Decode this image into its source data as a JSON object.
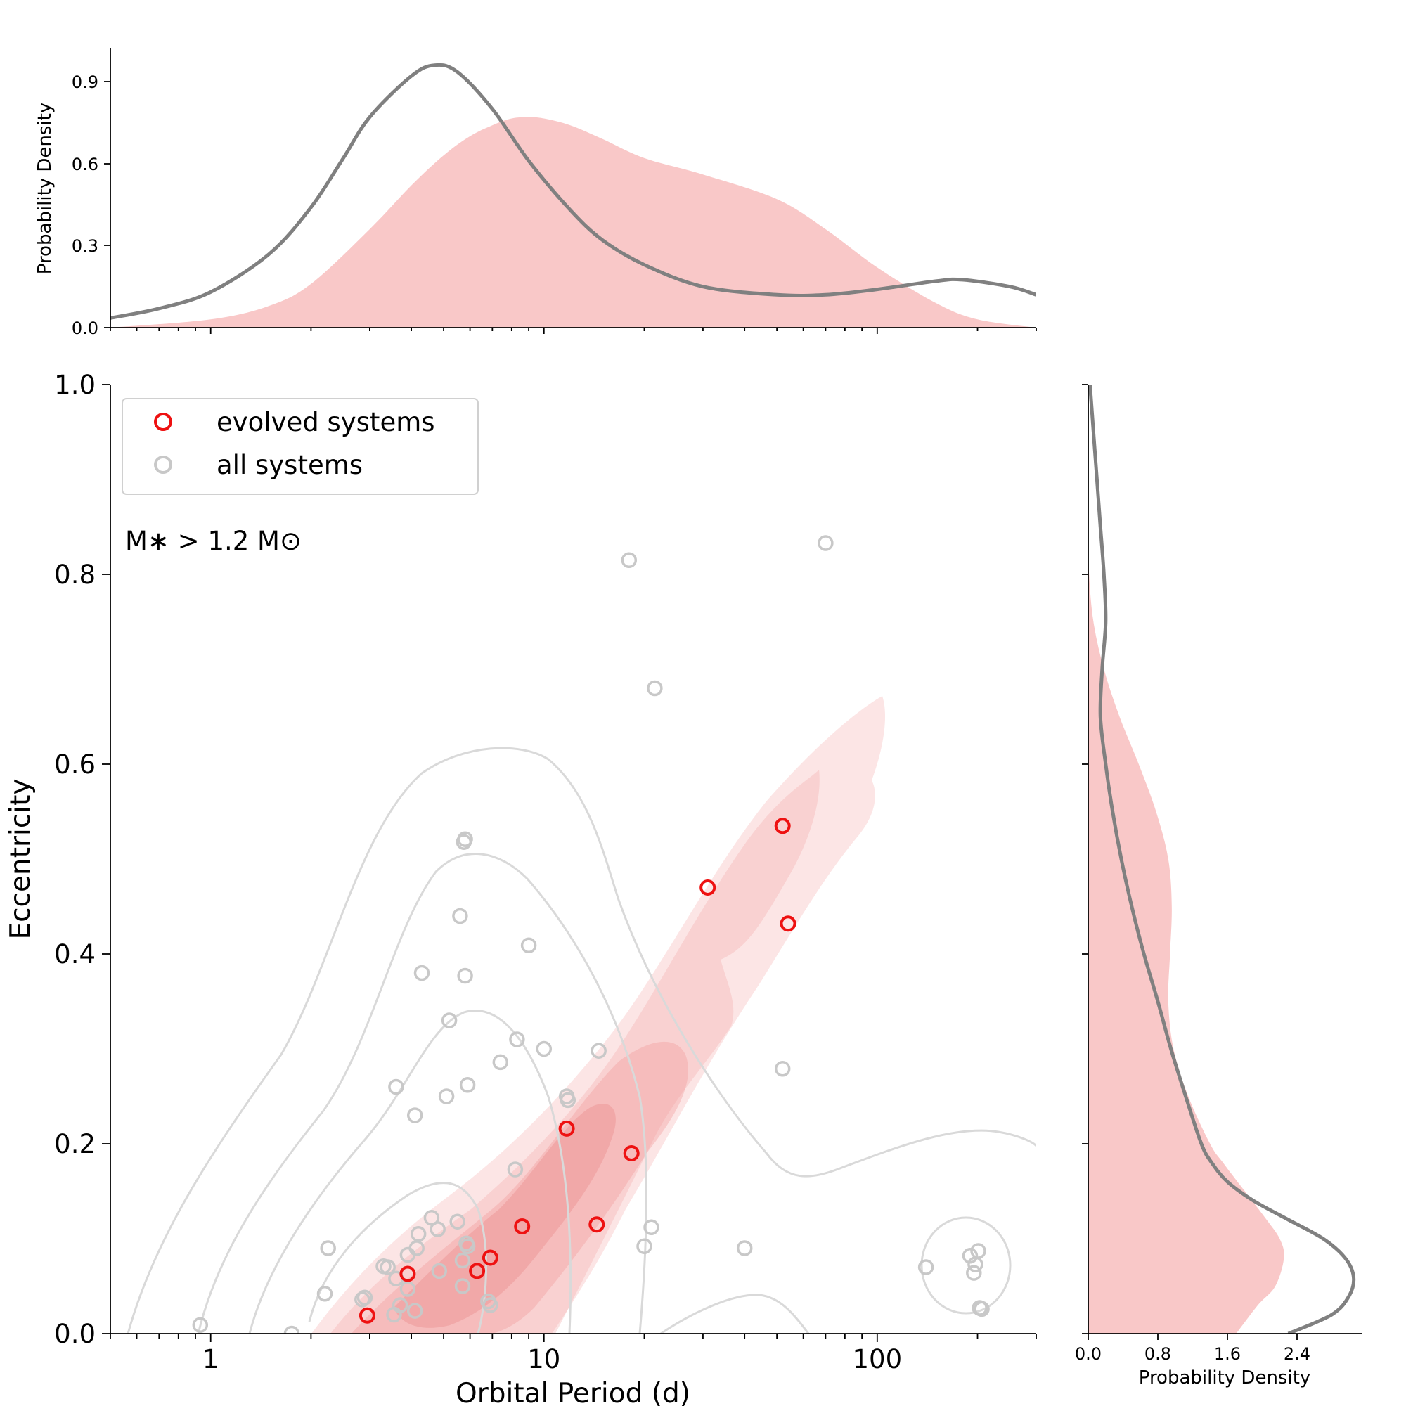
{
  "chart_data": [
    {
      "type": "scatter",
      "panel": "main",
      "xscale": "log",
      "xlim": [
        0.5,
        300
      ],
      "ylim": [
        0.0,
        1.0
      ],
      "xlabel": "Orbital Period (d)",
      "ylabel": "Eccentricity",
      "x_tick_labels": [
        "1",
        "10",
        "100"
      ],
      "y_tick_labels": [
        "0.0",
        "0.2",
        "0.4",
        "0.6",
        "0.8",
        "1.0"
      ],
      "annotation": "M∗ > 1.2 M⊙",
      "legend": {
        "position": "top-left",
        "entries": [
          "evolved systems",
          "all systems"
        ]
      },
      "colors": {
        "evolved": "#ee1111",
        "all": "#c8c8c8",
        "kde_fill": "#f4a6a6",
        "kde_line": "#d9d9d9"
      },
      "series": [
        {
          "name": "evolved systems",
          "points": [
            [
              2.95,
              0.019
            ],
            [
              3.9,
              0.063
            ],
            [
              6.3,
              0.066
            ],
            [
              6.9,
              0.08
            ],
            [
              8.6,
              0.113
            ],
            [
              11.7,
              0.216
            ],
            [
              14.4,
              0.115
            ],
            [
              18.3,
              0.19
            ],
            [
              31,
              0.47
            ],
            [
              52,
              0.535
            ],
            [
              54,
              0.432
            ]
          ]
        },
        {
          "name": "all systems",
          "points": [
            [
              0.93,
              0.009
            ],
            [
              1.75,
              0.0
            ],
            [
              2.2,
              0.042
            ],
            [
              2.25,
              0.09
            ],
            [
              2.85,
              0.036
            ],
            [
              2.9,
              0.038
            ],
            [
              3.3,
              0.071
            ],
            [
              3.4,
              0.07
            ],
            [
              3.55,
              0.02
            ],
            [
              3.6,
              0.058
            ],
            [
              3.7,
              0.03
            ],
            [
              3.9,
              0.083
            ],
            [
              3.9,
              0.047
            ],
            [
              4.1,
              0.024
            ],
            [
              4.15,
              0.09
            ],
            [
              4.2,
              0.105
            ],
            [
              4.6,
              0.122
            ],
            [
              4.8,
              0.11
            ],
            [
              4.85,
              0.066
            ],
            [
              4.1,
              0.23
            ],
            [
              3.6,
              0.26
            ],
            [
              4.3,
              0.38
            ],
            [
              5.1,
              0.25
            ],
            [
              5.2,
              0.33
            ],
            [
              5.6,
              0.44
            ],
            [
              5.75,
              0.518
            ],
            [
              5.8,
              0.521
            ],
            [
              5.9,
              0.262
            ],
            [
              5.8,
              0.377
            ],
            [
              5.5,
              0.118
            ],
            [
              5.7,
              0.077
            ],
            [
              5.7,
              0.05
            ],
            [
              5.85,
              0.095
            ],
            [
              5.9,
              0.092
            ],
            [
              6.8,
              0.034
            ],
            [
              6.9,
              0.03
            ],
            [
              7.4,
              0.286
            ],
            [
              8.2,
              0.173
            ],
            [
              8.3,
              0.31
            ],
            [
              9.0,
              0.409
            ],
            [
              10.0,
              0.3
            ],
            [
              11.7,
              0.25
            ],
            [
              11.8,
              0.246
            ],
            [
              14.6,
              0.298
            ],
            [
              18.0,
              0.815
            ],
            [
              20.0,
              0.092
            ],
            [
              21.0,
              0.112
            ],
            [
              21.5,
              0.68
            ],
            [
              40.0,
              0.09
            ],
            [
              52.0,
              0.279
            ],
            [
              70.0,
              0.833
            ],
            [
              140.0,
              0.07
            ],
            [
              190.0,
              0.082
            ],
            [
              195.0,
              0.064
            ],
            [
              197.0,
              0.073
            ],
            [
              201.0,
              0.087
            ],
            [
              203.0,
              0.027
            ],
            [
              206.0,
              0.026
            ]
          ]
        }
      ]
    },
    {
      "type": "area",
      "panel": "top-marginal",
      "xscale": "log",
      "xlim": [
        0.5,
        300
      ],
      "ylim": [
        0.0,
        1.02
      ],
      "ylabel": "Probability Density",
      "y_tick_labels": [
        "0.0",
        "0.3",
        "0.6",
        "0.9"
      ],
      "series": [
        {
          "name": "evolved systems",
          "style": "filled",
          "x": [
            0.5,
            1,
            1.5,
            2,
            3,
            4,
            5,
            6,
            7,
            8,
            9,
            10,
            12,
            15,
            20,
            30,
            50,
            70,
            100,
            150,
            200,
            300
          ],
          "values": [
            0.0,
            0.03,
            0.08,
            0.16,
            0.36,
            0.52,
            0.63,
            0.7,
            0.74,
            0.765,
            0.77,
            0.765,
            0.74,
            0.69,
            0.62,
            0.56,
            0.47,
            0.36,
            0.22,
            0.09,
            0.03,
            0.0
          ]
        },
        {
          "name": "all systems",
          "style": "line",
          "x": [
            0.5,
            0.7,
            1,
            1.5,
            2,
            2.5,
            3,
            4,
            4.7,
            5.5,
            7,
            9,
            12,
            15,
            20,
            30,
            50,
            70,
            100,
            150,
            180,
            250,
            300
          ],
          "values": [
            0.035,
            0.07,
            0.13,
            0.27,
            0.44,
            0.62,
            0.77,
            0.92,
            0.96,
            0.935,
            0.8,
            0.61,
            0.43,
            0.32,
            0.23,
            0.15,
            0.12,
            0.12,
            0.14,
            0.17,
            0.175,
            0.15,
            0.12
          ]
        }
      ]
    },
    {
      "type": "area",
      "panel": "right-marginal",
      "orientation": "horizontal",
      "xlim": [
        0.0,
        3.2
      ],
      "ylim": [
        0.0,
        1.0
      ],
      "xlabel": "Probability Density",
      "x_tick_labels": [
        "0.0",
        "0.8",
        "1.6",
        "2.4"
      ],
      "series": [
        {
          "name": "evolved systems",
          "style": "filled",
          "y": [
            0.0,
            0.03,
            0.05,
            0.08,
            0.1,
            0.12,
            0.15,
            0.18,
            0.2,
            0.25,
            0.3,
            0.35,
            0.4,
            0.45,
            0.5,
            0.55,
            0.6,
            0.65,
            0.7,
            0.75,
            0.8,
            0.85
          ],
          "values": [
            1.7,
            1.95,
            2.15,
            2.25,
            2.2,
            2.05,
            1.8,
            1.55,
            1.4,
            1.15,
            0.98,
            0.92,
            0.94,
            0.96,
            0.92,
            0.78,
            0.58,
            0.36,
            0.18,
            0.06,
            0.01,
            0.0
          ]
        },
        {
          "name": "all systems",
          "style": "line",
          "y": [
            0.0,
            0.02,
            0.04,
            0.06,
            0.08,
            0.1,
            0.12,
            0.14,
            0.16,
            0.18,
            0.2,
            0.25,
            0.3,
            0.35,
            0.4,
            0.45,
            0.5,
            0.55,
            0.6,
            0.65,
            0.7,
            0.75,
            0.8,
            0.85,
            0.9,
            0.95,
            1.0
          ],
          "values": [
            2.3,
            2.8,
            3.0,
            3.05,
            2.95,
            2.7,
            2.3,
            1.9,
            1.6,
            1.42,
            1.3,
            1.12,
            0.95,
            0.8,
            0.64,
            0.5,
            0.38,
            0.28,
            0.2,
            0.14,
            0.16,
            0.2,
            0.18,
            0.14,
            0.1,
            0.06,
            0.02
          ]
        }
      ]
    }
  ]
}
